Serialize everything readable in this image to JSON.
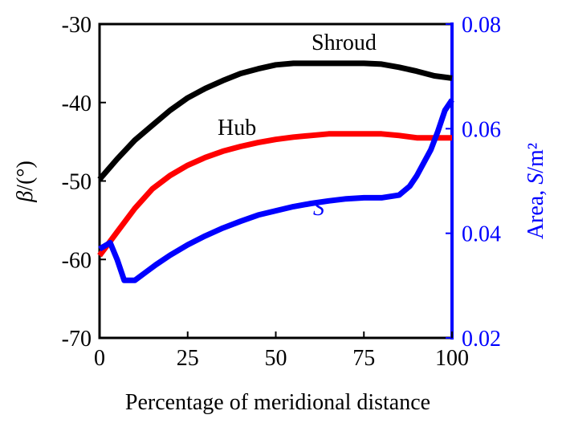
{
  "chart_data": {
    "type": "line",
    "title": "",
    "xlabel": "Percentage of meridional distance",
    "ylabel_left": "β/(°)",
    "ylabel_right": "Area, S/m²",
    "xlim": [
      0,
      100
    ],
    "ylim_left": [
      -70,
      -30
    ],
    "ylim_right": [
      0.02,
      0.08
    ],
    "x_ticks": [
      0,
      25,
      50,
      75,
      100
    ],
    "y_ticks_left": [
      -70,
      -60,
      -50,
      -40,
      -30
    ],
    "y_ticks_right": [
      0.02,
      0.04,
      0.06,
      0.08
    ],
    "y_tick_labels_right": [
      "0.02",
      "0.04",
      "0.06",
      "0.08"
    ],
    "left_axis_color": "#000000",
    "right_axis_color": "#0000ff",
    "series": [
      {
        "name": "Shroud",
        "axis": "left",
        "color": "#000000",
        "x": [
          0,
          5,
          10,
          15,
          20,
          25,
          30,
          35,
          40,
          45,
          50,
          55,
          60,
          65,
          70,
          75,
          80,
          85,
          90,
          95,
          100
        ],
        "y": [
          -49.8,
          -47.2,
          -44.8,
          -42.9,
          -41.0,
          -39.4,
          -38.2,
          -37.2,
          -36.3,
          -35.7,
          -35.2,
          -35.0,
          -35.0,
          -35.0,
          -35.0,
          -35.0,
          -35.1,
          -35.5,
          -36.0,
          -36.6,
          -36.9
        ]
      },
      {
        "name": "Hub",
        "axis": "left",
        "color": "#ff0000",
        "x": [
          0,
          5,
          10,
          15,
          20,
          25,
          30,
          35,
          40,
          45,
          50,
          55,
          60,
          65,
          70,
          75,
          80,
          85,
          90,
          95,
          100
        ],
        "y": [
          -59.5,
          -56.5,
          -53.5,
          -51.0,
          -49.3,
          -48.0,
          -47.0,
          -46.2,
          -45.6,
          -45.1,
          -44.7,
          -44.4,
          -44.2,
          -44.0,
          -44.0,
          -44.0,
          -44.0,
          -44.2,
          -44.5,
          -44.5,
          -44.5
        ]
      },
      {
        "name": "S",
        "axis": "right",
        "color": "#0000ff",
        "x": [
          0,
          3,
          5,
          7,
          10,
          13,
          16,
          20,
          25,
          30,
          35,
          40,
          45,
          50,
          55,
          60,
          65,
          70,
          75,
          80,
          85,
          88,
          90,
          92,
          94,
          96,
          98,
          100
        ],
        "y": [
          0.037,
          0.0382,
          0.035,
          0.031,
          0.031,
          0.0325,
          0.034,
          0.0358,
          0.0378,
          0.0395,
          0.041,
          0.0423,
          0.0435,
          0.0443,
          0.0451,
          0.0457,
          0.0462,
          0.0466,
          0.0468,
          0.0468,
          0.0473,
          0.049,
          0.051,
          0.0535,
          0.056,
          0.0595,
          0.0635,
          0.0655
        ]
      }
    ],
    "annotations": [
      {
        "text": "Shroud",
        "series": "Shroud"
      },
      {
        "text": "Hub",
        "series": "Hub"
      },
      {
        "text": "S",
        "series": "S"
      }
    ]
  }
}
